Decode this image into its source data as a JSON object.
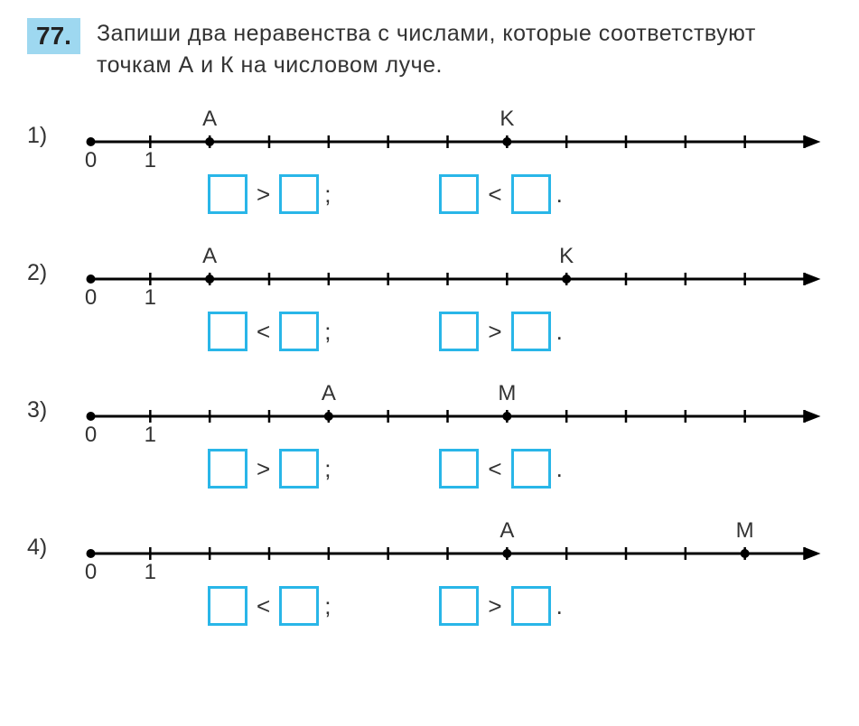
{
  "task": {
    "number": "77.",
    "text": "Запиши два неравенства с числами, которые соответствуют точкам А и К на числовом луче."
  },
  "numberline": {
    "line_color": "#000000",
    "tick_color": "#000000",
    "label_color": "#333333",
    "label_fontsize": 24,
    "box_border_color": "#29b6e8",
    "total_ticks": 12,
    "origin_label": "0",
    "unit_label": "1"
  },
  "problems": [
    {
      "id": "1)",
      "points": [
        {
          "label": "A",
          "pos": 2
        },
        {
          "label": "K",
          "pos": 7
        }
      ],
      "ineq1_op": ">",
      "ineq2_op": "<"
    },
    {
      "id": "2)",
      "points": [
        {
          "label": "A",
          "pos": 2
        },
        {
          "label": "K",
          "pos": 8
        }
      ],
      "ineq1_op": "<",
      "ineq2_op": ">"
    },
    {
      "id": "3)",
      "points": [
        {
          "label": "A",
          "pos": 4
        },
        {
          "label": "M",
          "pos": 7
        }
      ],
      "ineq1_op": ">",
      "ineq2_op": "<"
    },
    {
      "id": "4)",
      "points": [
        {
          "label": "A",
          "pos": 7
        },
        {
          "label": "M",
          "pos": 11
        }
      ],
      "ineq1_op": "<",
      "ineq2_op": ">"
    }
  ]
}
